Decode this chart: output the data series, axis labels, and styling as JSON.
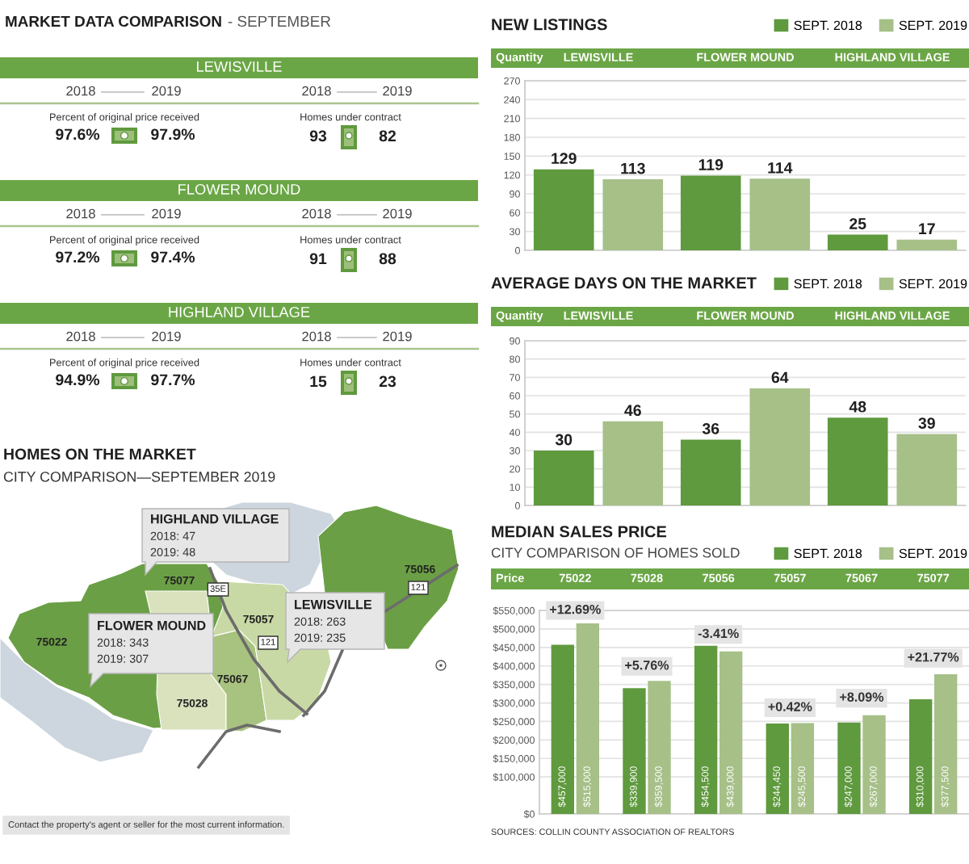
{
  "chart_data": [
    {
      "type": "other",
      "title": "MARKET DATA COMPARISON",
      "subtitle": "- SEPTEMBER",
      "annotations": [
        "LEWISVILLE",
        "2018",
        "2019",
        "2018",
        "2019",
        "Percent of original price received",
        "97.6%",
        "97.9%",
        "Homes under contract",
        "93",
        "82",
        "FLOWER MOUND",
        "2018",
        "2019",
        "2018",
        "2019",
        "Percent of original price received",
        "97.2%",
        "97.4%",
        "Homes under contract",
        "91",
        "88",
        "HIGHLAND VILLAGE",
        "2018",
        "2019",
        "2018",
        "2019",
        "Percent of original price received",
        "94.9%",
        "97.7%",
        "Homes under contract",
        "15",
        "23"
      ]
    },
    {
      "type": "bar",
      "title": "NEW LISTINGS",
      "ylabel": "Quantity",
      "categories": [
        "LEWISVILLE",
        "FLOWER MOUND",
        "HIGHLAND VILLAGE"
      ],
      "series": [
        {
          "name": "SEPT. 2018",
          "color": "#5f9a3e",
          "values": [
            129,
            119,
            25
          ]
        },
        {
          "name": "SEPT. 2019",
          "color": "#a6c088",
          "values": [
            113,
            114,
            17
          ]
        }
      ],
      "ylim": [
        0,
        270
      ],
      "yticks": [
        0,
        30,
        60,
        90,
        120,
        150,
        180,
        210,
        240,
        270
      ],
      "grid": "y",
      "legend": "top right",
      "data_labels": true
    },
    {
      "type": "bar",
      "title": "AVERAGE DAYS ON THE MARKET",
      "ylabel": "Quantity",
      "categories": [
        "LEWISVILLE",
        "FLOWER MOUND",
        "HIGHLAND VILLAGE"
      ],
      "series": [
        {
          "name": "SEPT. 2018",
          "color": "#5f9a3e",
          "values": [
            30,
            36,
            48
          ]
        },
        {
          "name": "SEPT. 2019",
          "color": "#a6c088",
          "values": [
            46,
            64,
            39
          ]
        }
      ],
      "ylim": [
        0,
        90
      ],
      "yticks": [
        0,
        10,
        20,
        30,
        40,
        50,
        60,
        70,
        80,
        90
      ],
      "grid": "y",
      "legend": "top right",
      "data_labels": true
    },
    {
      "type": "other",
      "title": "HOMES ON THE MARKET",
      "subtitle": "CITY COMPARISON—SEPTEMBER 2019",
      "annotations": [
        "HIGHLAND VILLAGE",
        "2018: 47",
        "2019: 48",
        "FLOWER MOUND",
        "2018: 343",
        "2019: 307",
        "LEWISVILLE",
        "2018: 263",
        "2019: 235",
        "75077",
        "75056",
        "75057",
        "75022",
        "75067",
        "75028",
        "35E",
        "121",
        "121",
        "Contact the property's agent or seller for the most current information."
      ]
    },
    {
      "type": "bar",
      "title": "MEDIAN SALES PRICE",
      "subtitle": "CITY COMPARISON OF HOMES SOLD",
      "ylabel": "Price",
      "categories": [
        "75022",
        "75028",
        "75056",
        "75057",
        "75067",
        "75077"
      ],
      "series": [
        {
          "name": "SEPT. 2018",
          "color": "#5f9a3e",
          "values": [
            457000,
            339900,
            454500,
            244450,
            247000,
            310000
          ],
          "value_labels": [
            "$457,000",
            "$339,900",
            "$454,500",
            "$244,450",
            "$247,000",
            "$310,000"
          ]
        },
        {
          "name": "SEPT. 2019",
          "color": "#a6c088",
          "values": [
            515000,
            359500,
            439000,
            245500,
            267000,
            377500
          ],
          "value_labels": [
            "$515,000",
            "$359,500",
            "$439,000",
            "$245,500",
            "$267,000",
            "$377,500"
          ]
        }
      ],
      "ylim": [
        0,
        550000
      ],
      "yticks": [
        {
          "value": 0,
          "label": "$0"
        },
        {
          "value": 100000,
          "label": "$100,000"
        },
        {
          "value": 150000,
          "label": "$150,000"
        },
        {
          "value": 200000,
          "label": "$200,000"
        },
        {
          "value": 250000,
          "label": "$250,000"
        },
        {
          "value": 300000,
          "label": "$300,000"
        },
        {
          "value": 350000,
          "label": "$350,000"
        },
        {
          "value": 400000,
          "label": "$400,000"
        },
        {
          "value": 450000,
          "label": "$450,000"
        },
        {
          "value": 500000,
          "label": "$500,000"
        },
        {
          "value": 550000,
          "label": "$550,000"
        }
      ],
      "grid": "y",
      "legend": "top right",
      "annotations": [
        {
          "text": "+12.69%",
          "x": "75022",
          "y": 550000
        },
        {
          "text": "+5.76%",
          "x": "75028",
          "y": 399000
        },
        {
          "text": "-3.41%",
          "x": "75056",
          "y": 485000
        },
        {
          "text": "+0.42%",
          "x": "75057",
          "y": 287000
        },
        {
          "text": "+8.09%",
          "x": "75067",
          "y": 313000
        },
        {
          "text": "+21.77%",
          "x": "75077",
          "y": 421000
        },
        "SOURCES: COLLIN COUNTY ASSOCIATION OF REALTORS"
      ]
    }
  ]
}
